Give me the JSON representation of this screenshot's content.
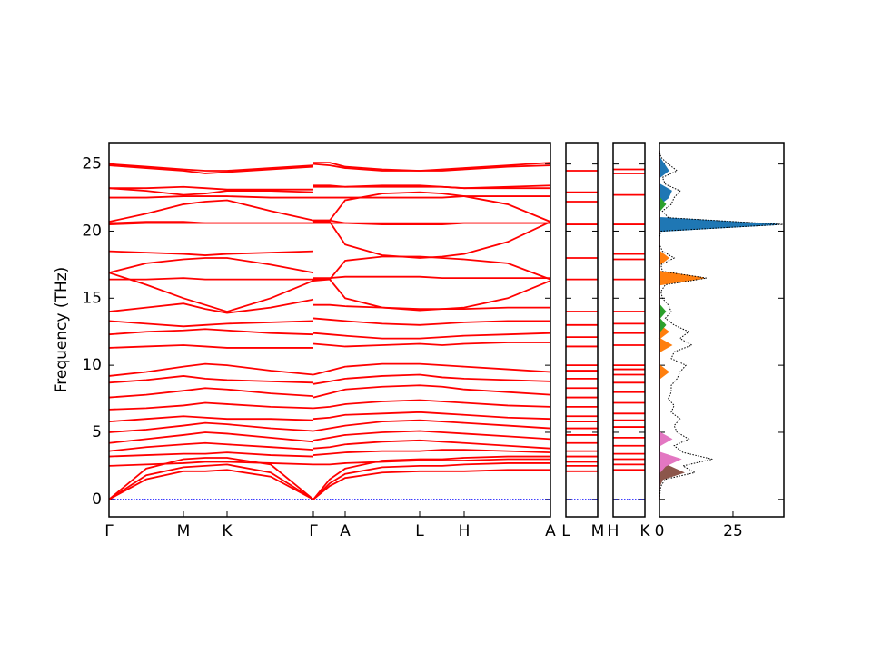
{
  "chart_data": [
    {
      "type": "bands",
      "ylabel": "Frequency (THz)",
      "color": "#ff0000",
      "x": [
        0,
        0.41,
        0.82,
        1.06,
        1.3,
        1.78,
        2.25,
        2.25,
        2.25,
        2.43,
        2.6,
        3.01,
        3.42,
        3.67,
        3.91,
        4.39,
        4.86
      ],
      "xlim": [
        0,
        4.86
      ],
      "xticks": [
        {
          "value": 0,
          "label": "Γ"
        },
        {
          "value": 0.82,
          "label": "M"
        },
        {
          "value": 1.3,
          "label": "K"
        },
        {
          "value": 2.25,
          "label": "Γ"
        },
        {
          "value": 2.6,
          "label": "A"
        },
        {
          "value": 3.42,
          "label": "L"
        },
        {
          "value": 3.91,
          "label": "H"
        },
        {
          "value": 4.86,
          "label": "A"
        }
      ],
      "ylim": [
        -1.3,
        26.6
      ],
      "yticks": [
        0,
        5,
        10,
        15,
        20,
        25
      ],
      "hline": {
        "value": 0,
        "color": "#0000ff"
      },
      "series": [
        {
          "values": [
            0,
            1.5,
            2.1,
            2.1,
            2.2,
            1.7,
            0,
            null,
            0,
            1.0,
            1.6,
            2.0,
            2.1,
            2.1,
            2.1,
            2.2,
            2.2
          ]
        },
        {
          "values": [
            0,
            1.8,
            2.4,
            2.5,
            2.6,
            2.0,
            0,
            null,
            0,
            1.2,
            1.9,
            2.4,
            2.5,
            2.5,
            2.6,
            2.7,
            2.7
          ]
        },
        {
          "values": [
            0,
            2.3,
            3.0,
            3.1,
            3.1,
            2.6,
            0,
            null,
            0,
            1.5,
            2.3,
            2.9,
            3.0,
            3.0,
            3.1,
            3.2,
            3.2
          ]
        },
        {
          "values": [
            2.5,
            2.6,
            2.7,
            2.8,
            2.8,
            2.7,
            2.6,
            null,
            2.6,
            2.6,
            2.7,
            2.8,
            2.9,
            2.9,
            2.9,
            3.0,
            3.0
          ]
        },
        {
          "values": [
            3.2,
            3.3,
            3.4,
            3.4,
            3.5,
            3.3,
            3.2,
            null,
            3.3,
            3.4,
            3.5,
            3.6,
            3.6,
            3.7,
            3.7,
            3.6,
            3.5
          ]
        },
        {
          "values": [
            3.6,
            3.9,
            4.1,
            4.2,
            4.1,
            3.9,
            3.7,
            null,
            3.8,
            3.9,
            4.1,
            4.3,
            4.4,
            4.3,
            4.2,
            4.0,
            3.8
          ]
        },
        {
          "values": [
            4.2,
            4.5,
            4.8,
            5.0,
            4.9,
            4.6,
            4.3,
            null,
            4.4,
            4.6,
            4.8,
            5.0,
            5.1,
            5.0,
            4.9,
            4.7,
            4.5
          ]
        },
        {
          "values": [
            5.0,
            5.2,
            5.5,
            5.7,
            5.6,
            5.3,
            5.1,
            null,
            5.1,
            5.3,
            5.5,
            5.8,
            5.9,
            5.8,
            5.7,
            5.5,
            5.3
          ]
        },
        {
          "values": [
            5.8,
            6.0,
            6.2,
            6.1,
            6.0,
            6.0,
            5.9,
            null,
            6.0,
            6.1,
            6.3,
            6.4,
            6.5,
            6.4,
            6.3,
            6.1,
            6.0
          ]
        },
        {
          "values": [
            6.7,
            6.8,
            7.0,
            7.2,
            7.1,
            6.9,
            6.8,
            null,
            6.8,
            6.9,
            7.1,
            7.3,
            7.4,
            7.3,
            7.2,
            7.0,
            6.9
          ]
        },
        {
          "values": [
            7.6,
            7.8,
            8.1,
            8.3,
            8.2,
            7.9,
            7.7,
            null,
            7.6,
            7.9,
            8.2,
            8.4,
            8.5,
            8.4,
            8.2,
            8.0,
            7.8
          ]
        },
        {
          "values": [
            8.7,
            8.9,
            9.2,
            9.0,
            8.9,
            8.8,
            8.7,
            null,
            8.6,
            8.8,
            9.0,
            9.2,
            9.3,
            9.1,
            9.0,
            8.9,
            8.8
          ]
        },
        {
          "values": [
            9.2,
            9.5,
            9.9,
            10.1,
            10.0,
            9.6,
            9.3,
            null,
            9.3,
            9.6,
            9.9,
            10.1,
            10.1,
            10.0,
            9.9,
            9.7,
            9.5
          ]
        },
        {
          "values": [
            11.3,
            11.4,
            11.5,
            11.4,
            11.3,
            11.3,
            11.3,
            null,
            11.6,
            11.5,
            11.4,
            11.5,
            11.6,
            11.5,
            11.6,
            11.7,
            11.7
          ]
        },
        {
          "values": [
            12.3,
            12.5,
            12.6,
            12.7,
            12.6,
            12.4,
            12.3,
            null,
            12.4,
            12.3,
            12.2,
            12.0,
            12.0,
            12.1,
            12.2,
            12.3,
            12.4
          ]
        },
        {
          "values": [
            13.3,
            13.1,
            12.9,
            13.0,
            13.1,
            13.2,
            13.3,
            null,
            13.5,
            13.4,
            13.3,
            13.1,
            13.0,
            13.1,
            13.2,
            13.3,
            13.3
          ]
        },
        {
          "values": [
            14.0,
            14.3,
            14.6,
            14.2,
            13.9,
            14.3,
            14.9,
            null,
            14.5,
            14.5,
            14.4,
            14.3,
            14.2,
            14.2,
            14.2,
            14.3,
            14.3
          ]
        },
        {
          "values": [
            16.9,
            16.0,
            15.0,
            14.5,
            14.0,
            15.0,
            16.3,
            null,
            16.3,
            16.4,
            15.0,
            14.3,
            14.1,
            14.2,
            14.3,
            15.0,
            16.3
          ]
        },
        {
          "values": [
            16.4,
            16.4,
            16.5,
            16.4,
            16.4,
            16.4,
            16.4,
            null,
            16.4,
            16.4,
            17.8,
            18.1,
            18.1,
            18.0,
            17.9,
            17.6,
            16.4
          ]
        },
        {
          "values": [
            16.9,
            17.6,
            17.9,
            18.0,
            18.0,
            17.5,
            16.9,
            null,
            16.5,
            16.5,
            16.6,
            16.6,
            16.6,
            16.5,
            16.5,
            16.5,
            16.5
          ]
        },
        {
          "values": [
            18.5,
            18.4,
            18.3,
            18.2,
            18.3,
            18.4,
            18.5,
            null,
            20.7,
            20.7,
            19.0,
            18.2,
            18.0,
            18.1,
            18.3,
            19.2,
            20.7
          ]
        },
        {
          "values": [
            20.6,
            20.7,
            20.7,
            20.6,
            20.6,
            20.6,
            20.6,
            null,
            20.8,
            20.8,
            22.3,
            22.8,
            22.9,
            22.8,
            22.6,
            22.0,
            20.7
          ]
        },
        {
          "values": [
            20.5,
            20.6,
            20.6,
            20.6,
            20.6,
            20.6,
            20.6,
            null,
            20.6,
            20.6,
            20.6,
            20.6,
            20.6,
            20.6,
            20.6,
            20.6,
            20.6
          ]
        },
        {
          "values": [
            20.7,
            21.3,
            22.0,
            22.2,
            22.3,
            21.5,
            20.8,
            null,
            20.8,
            20.8,
            20.6,
            20.5,
            20.5,
            20.5,
            20.6,
            20.6,
            20.6
          ]
        },
        {
          "values": [
            22.5,
            22.5,
            22.6,
            22.6,
            22.6,
            22.5,
            22.5,
            null,
            22.5,
            22.5,
            22.5,
            22.5,
            22.5,
            22.5,
            22.6,
            22.6,
            22.6
          ]
        },
        {
          "values": [
            23.2,
            23.2,
            23.3,
            23.2,
            23.1,
            23.1,
            23.1,
            null,
            23.3,
            23.3,
            23.3,
            23.3,
            23.3,
            23.3,
            23.2,
            23.2,
            23.2
          ]
        },
        {
          "values": [
            23.2,
            23.0,
            22.7,
            22.8,
            23.0,
            23.0,
            22.9,
            null,
            23.4,
            23.4,
            23.3,
            23.4,
            23.4,
            23.3,
            23.2,
            23.3,
            23.4
          ]
        },
        {
          "values": [
            25.0,
            24.8,
            24.6,
            24.5,
            24.5,
            24.7,
            24.9,
            null,
            25.1,
            25.1,
            24.8,
            24.6,
            24.5,
            24.6,
            24.7,
            24.9,
            25.1
          ]
        },
        {
          "values": [
            24.9,
            24.7,
            24.5,
            24.3,
            24.4,
            24.6,
            24.8,
            null,
            25.0,
            24.9,
            24.7,
            24.5,
            24.5,
            24.5,
            24.6,
            24.8,
            24.9
          ]
        }
      ]
    },
    {
      "type": "levels",
      "color": "#ff0000",
      "xlim": [
        0,
        1
      ],
      "xticks": [
        {
          "value": 0,
          "label": "L"
        },
        {
          "value": 1,
          "label": "M"
        }
      ],
      "hline": {
        "value": 0,
        "color": "#0000ff"
      },
      "levels": [
        2.1,
        2.5,
        2.8,
        3.2,
        3.6,
        4.2,
        4.8,
        5.3,
        5.8,
        6.2,
        6.9,
        7.6,
        8.3,
        9.0,
        9.6,
        10.0,
        11.4,
        12.1,
        13.0,
        14.0,
        16.4,
        18.0,
        20.5,
        22.2,
        22.9,
        24.5
      ]
    },
    {
      "type": "levels",
      "color": "#ff0000",
      "xlim": [
        0,
        1
      ],
      "xticks": [
        {
          "value": 0,
          "label": "H"
        },
        {
          "value": 1,
          "label": "K"
        }
      ],
      "hline": {
        "value": 0,
        "color": "#0000ff"
      },
      "levels": [
        2.2,
        2.6,
        3.0,
        3.4,
        4.0,
        4.6,
        5.4,
        5.9,
        6.4,
        7.2,
        8.0,
        8.7,
        9.3,
        9.7,
        10.0,
        11.5,
        12.4,
        13.1,
        14.0,
        16.4,
        17.9,
        18.3,
        20.5,
        22.7,
        24.3,
        24.6
      ]
    },
    {
      "type": "dos",
      "xlim": [
        0,
        42.3
      ],
      "xticks": [
        0,
        25
      ],
      "y": [
        0,
        0.5,
        1,
        1.5,
        2,
        2.5,
        3,
        3.5,
        4,
        4.5,
        5,
        5.5,
        6,
        6.5,
        7,
        7.5,
        8,
        8.5,
        9,
        9.5,
        10,
        10.5,
        11,
        11.5,
        12,
        12.5,
        13,
        13.5,
        14,
        14.5,
        15,
        15.5,
        16,
        16.5,
        17,
        17.5,
        18,
        18.5,
        19,
        19.5,
        20,
        20.5,
        21,
        21.5,
        22,
        22.5,
        23,
        23.5,
        24,
        24.5,
        25,
        25.5,
        26
      ],
      "total": {
        "color": "#000000",
        "values": [
          0,
          0.2,
          0.5,
          2,
          12,
          8,
          18,
          8,
          5,
          10,
          6,
          5,
          7,
          4,
          5,
          3,
          4,
          4,
          6,
          7,
          9,
          4,
          5,
          11,
          7,
          10,
          5,
          2,
          4,
          3,
          1,
          0.5,
          2,
          16,
          1,
          0.5,
          5,
          1,
          0,
          0,
          0.5,
          42,
          3,
          1,
          4,
          5,
          7,
          2,
          1,
          6,
          3,
          0.5,
          0
        ]
      },
      "series": [
        {
          "color": "#1f77b4",
          "values": [
            0,
            0,
            0,
            0,
            0,
            0,
            0,
            0,
            0,
            0,
            0,
            0,
            0,
            0,
            0,
            0,
            0,
            0,
            0,
            0,
            0,
            0,
            0,
            0,
            0,
            0,
            0,
            0,
            0,
            0,
            0,
            0,
            0,
            0,
            0,
            0,
            0,
            0,
            0,
            0,
            0,
            40,
            0,
            0,
            0,
            3,
            4,
            0,
            0,
            3,
            1.5,
            0,
            0
          ]
        },
        {
          "color": "#ff7f0e",
          "values": [
            0,
            0,
            0,
            0,
            0,
            0,
            0,
            0,
            0,
            0,
            0,
            0,
            0,
            0,
            0,
            0,
            0,
            0,
            0,
            3,
            0,
            0,
            0,
            4,
            0,
            3,
            0,
            0,
            0,
            0,
            0,
            0,
            0,
            15,
            0,
            0,
            3,
            0,
            0,
            0,
            0,
            0,
            0,
            0,
            0,
            0,
            0,
            0,
            0,
            0,
            0,
            0,
            0
          ]
        },
        {
          "color": "#2ca02c",
          "values": [
            0,
            0,
            0,
            0,
            0,
            0,
            0,
            0,
            0,
            0,
            0,
            0,
            0,
            0,
            0,
            0,
            0,
            0,
            0,
            0,
            0,
            0,
            0,
            0,
            0,
            0,
            2,
            0,
            2,
            0,
            0,
            0,
            0,
            0,
            0,
            0,
            0,
            0,
            0,
            0,
            0,
            0,
            0,
            0,
            2,
            0,
            0,
            0,
            0,
            0,
            0,
            0,
            0
          ]
        },
        {
          "color": "#8c564b",
          "values": [
            0,
            0,
            0,
            1,
            8,
            3,
            0,
            0,
            0,
            0,
            0,
            0,
            0,
            0,
            0,
            0,
            0,
            0,
            0,
            0,
            0,
            0,
            0,
            0,
            0,
            0,
            0,
            0,
            0,
            0,
            0,
            0,
            0,
            0,
            0,
            0,
            0,
            0,
            0,
            0,
            0,
            0,
            0,
            0,
            0,
            0,
            0,
            0,
            0,
            0,
            0,
            0,
            0
          ]
        },
        {
          "color": "#e377c2",
          "values": [
            0,
            0,
            0,
            0,
            0,
            2,
            7,
            0,
            0,
            4,
            0,
            0,
            0,
            0,
            0,
            0,
            0,
            0,
            0,
            0,
            0,
            0,
            0,
            0,
            0,
            0,
            0,
            0,
            0,
            0,
            0,
            0,
            0,
            0,
            0,
            0,
            0,
            0,
            0,
            0,
            0,
            0,
            0,
            0,
            0,
            0,
            0,
            0,
            0,
            0,
            0,
            0,
            0
          ]
        }
      ]
    }
  ]
}
